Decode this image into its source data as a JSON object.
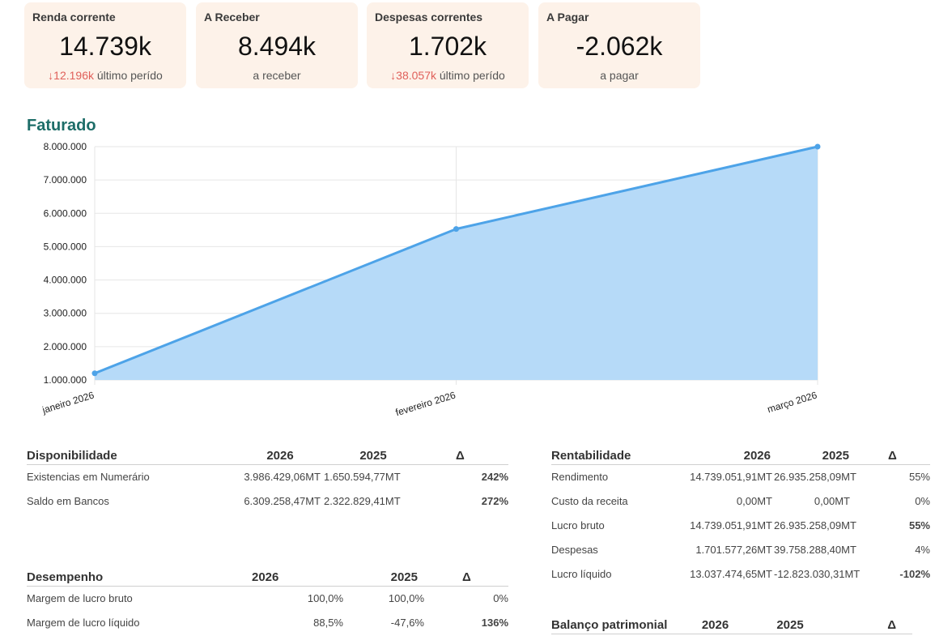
{
  "cards": [
    {
      "title": "Renda corrente",
      "value": "14.739k",
      "delta": "12.196k",
      "sub": "último perído",
      "arrow": "down"
    },
    {
      "title": "A Receber",
      "value": "8.494k",
      "sub": "a receber"
    },
    {
      "title": "Despesas correntes",
      "value": "1.702k",
      "delta": "38.057k",
      "sub": "último perído",
      "arrow": "down"
    },
    {
      "title": "A Pagar",
      "value": "-2.062k",
      "sub": "a pagar"
    }
  ],
  "chart_title": "Faturado",
  "chart_data": {
    "type": "area",
    "title": "Faturado",
    "categories": [
      "janeiro 2026",
      "fevereiro 2026",
      "março 2026"
    ],
    "series": [
      {
        "name": "Faturado",
        "values": [
          1200000,
          5530000,
          8000000
        ]
      }
    ],
    "ylim": [
      1000000,
      8000000
    ],
    "yticks": [
      1000000,
      2000000,
      3000000,
      4000000,
      5000000,
      6000000,
      7000000,
      8000000
    ],
    "ytick_labels": [
      "1.000.000",
      "2.000.000",
      "3.000.000",
      "4.000.000",
      "5.000.000",
      "6.000.000",
      "7.000.000",
      "8.000.000"
    ],
    "line_color": "#4da3e8",
    "fill_color": "#b6daf8",
    "grid": true
  },
  "disponibilidade": {
    "headers": [
      "Disponibilidade",
      "2026",
      "2025",
      "Δ"
    ],
    "rows": [
      {
        "label": "Existencias em Numerário",
        "y2026": "3.986.429,06MT",
        "y2025": "1.650.594,77MT",
        "delta": "242%",
        "status": "pos"
      },
      {
        "label": "Saldo em Bancos",
        "y2026": "6.309.258,47MT",
        "y2025": "2.322.829,41MT",
        "delta": "272%",
        "status": "pos"
      }
    ]
  },
  "desempenho": {
    "headers": [
      "Desempenho",
      "2026",
      "2025",
      "Δ"
    ],
    "rows": [
      {
        "label": "Margem de lucro bruto",
        "y2026": "100,0%",
        "y2025": "100,0%",
        "delta": "0%",
        "status": ""
      },
      {
        "label": "Margem de lucro líquido",
        "y2026": "88,5%",
        "y2025": "-47,6%",
        "delta": "136%",
        "status": "pos"
      }
    ]
  },
  "rentabilidade": {
    "headers": [
      "Rentabilidade",
      "2026",
      "2025",
      "Δ"
    ],
    "rows": [
      {
        "label": "Rendimento",
        "y2026": "14.739.051,91MT",
        "y2025": "26.935.258,09MT",
        "delta": "55%",
        "status": ""
      },
      {
        "label": "Custo da receita",
        "y2026": "0,00MT",
        "y2025": "0,00MT",
        "delta": "0%",
        "status": ""
      },
      {
        "label": "Lucro bruto",
        "y2026": "14.739.051,91MT",
        "y2025": "26.935.258,09MT",
        "delta": "55%",
        "status": "pos"
      },
      {
        "label": "Despesas",
        "y2026": "1.701.577,26MT",
        "y2025": "39.758.288,40MT",
        "delta": "4%",
        "status": ""
      },
      {
        "label": "Lucro líquido",
        "y2026": "13.037.474,65MT",
        "y2025": "-12.823.030,31MT",
        "delta": "-102%",
        "status": "neg"
      }
    ]
  },
  "balanco": {
    "headers": [
      "Balanço patrimonial",
      "2026",
      "2025",
      "Δ"
    ]
  }
}
